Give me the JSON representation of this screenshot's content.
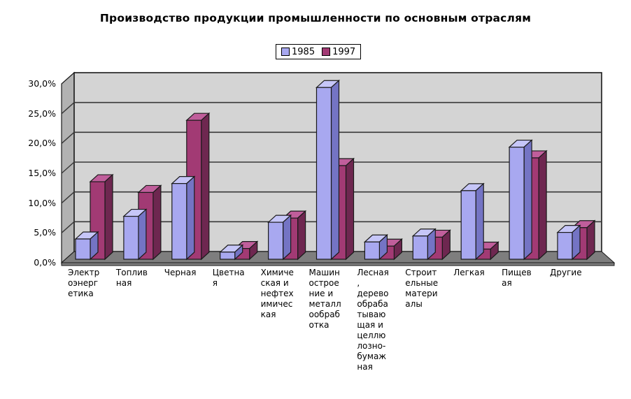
{
  "title": "Производство продукции промышленности по основным отраслям",
  "legend": {
    "items": [
      {
        "label": "1985",
        "color": "#A8A8F0"
      },
      {
        "label": "1997",
        "color": "#A23A74"
      }
    ]
  },
  "chart_data": {
    "type": "bar",
    "style": "3d-clustered-column",
    "title": "Производство продукции промышленности по основным отраслям",
    "legend_position": "top-center",
    "grid": true,
    "ylim": [
      0,
      30
    ],
    "ytick_step": 5,
    "ytick_labels": [
      "0,0%",
      "5,0%",
      "10,0%",
      "15,0%",
      "20,0%",
      "25,0%",
      "30,0%"
    ],
    "categories": [
      "Электроэнергетика",
      "Топливная",
      "Черная",
      "Цветная",
      "Химическая и нефтехимическая",
      "Машиностроение и металлообработка",
      "Лесная, деревообрабатывающая и целлюлозно-бумажная",
      "Строительные материалы",
      "Легкая",
      "Пищевая",
      "Другие"
    ],
    "category_label_lines": [
      [
        "Электр",
        "оэнерг",
        "етика"
      ],
      [
        "Топлив",
        "ная"
      ],
      [
        "Черная"
      ],
      [
        "Цветна",
        "я"
      ],
      [
        "Химиче",
        "ская и",
        "нефтех",
        "имичес",
        "кая"
      ],
      [
        "Машин",
        "острое",
        "ние и",
        "металл",
        "ообраб",
        "отка"
      ],
      [
        "Лесная",
        ",",
        "дерево",
        "обраба",
        "тываю",
        "щая и",
        "целлю",
        "лозно-",
        "бумаж",
        "ная"
      ],
      [
        "Строит",
        "ельные",
        "матери",
        "алы"
      ],
      [
        "Легкая"
      ],
      [
        "Пищев",
        "ая"
      ],
      [
        "Другие"
      ]
    ],
    "series": [
      {
        "name": "1985",
        "color": "#A8A8F0",
        "color_top": "#C6C6F8",
        "color_side": "#7474C4",
        "values": [
          3.4,
          7.2,
          12.7,
          1.2,
          6.2,
          28.8,
          2.9,
          3.9,
          11.5,
          18.8,
          4.5
        ]
      },
      {
        "name": "1997",
        "color": "#A23A74",
        "color_top": "#C05E9B",
        "color_side": "#6E2750",
        "values": [
          13.0,
          11.2,
          23.3,
          1.8,
          6.9,
          15.7,
          2.2,
          3.7,
          1.7,
          17.0,
          5.3
        ]
      }
    ],
    "colors": {
      "background": "#FFFFFF",
      "back_wall": "#D4D4D4",
      "side_wall": "#B2B2B2",
      "floor": "#7E7E7E",
      "gridline": "#383838",
      "edge": "#1A1A1A"
    }
  }
}
